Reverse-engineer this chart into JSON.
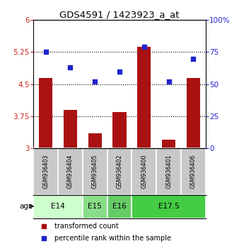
{
  "title": "GDS4591 / 1423923_a_at",
  "samples": [
    "GSM936403",
    "GSM936404",
    "GSM936405",
    "GSM936402",
    "GSM936400",
    "GSM936401",
    "GSM936406"
  ],
  "transformed_count": [
    4.65,
    3.9,
    3.35,
    3.85,
    5.37,
    3.2,
    4.65
  ],
  "percentile_rank": [
    75,
    63,
    52,
    60,
    79,
    52,
    70
  ],
  "bar_color": "#aa1111",
  "dot_color": "#2222cc",
  "ylim_left": [
    3,
    6
  ],
  "ylim_right": [
    0,
    100
  ],
  "yticks_left": [
    3,
    3.75,
    4.5,
    5.25,
    6
  ],
  "yticks_right": [
    0,
    25,
    50,
    75,
    100
  ],
  "ytick_labels_left": [
    "3",
    "3.75",
    "4.5",
    "5.25",
    "6"
  ],
  "ytick_labels_right": [
    "0",
    "25",
    "50",
    "75",
    "100%"
  ],
  "hlines": [
    3.75,
    4.5,
    5.25
  ],
  "age_groups": [
    {
      "label": "E14",
      "start": 0,
      "end": 2,
      "color": "#ccffcc"
    },
    {
      "label": "E15",
      "start": 2,
      "end": 3,
      "color": "#88dd88"
    },
    {
      "label": "E16",
      "start": 3,
      "end": 4,
      "color": "#66cc66"
    },
    {
      "label": "E17.5",
      "start": 4,
      "end": 7,
      "color": "#44cc44"
    }
  ],
  "legend_items": [
    {
      "label": "transformed count",
      "color": "#aa1111"
    },
    {
      "label": "percentile rank within the sample",
      "color": "#2222cc"
    }
  ],
  "left_tick_color": "#cc2222",
  "right_tick_color": "#2222cc",
  "bar_bottom": 3.0,
  "sample_box_color": "#c8c8c8",
  "plot_bg": "#ffffff"
}
